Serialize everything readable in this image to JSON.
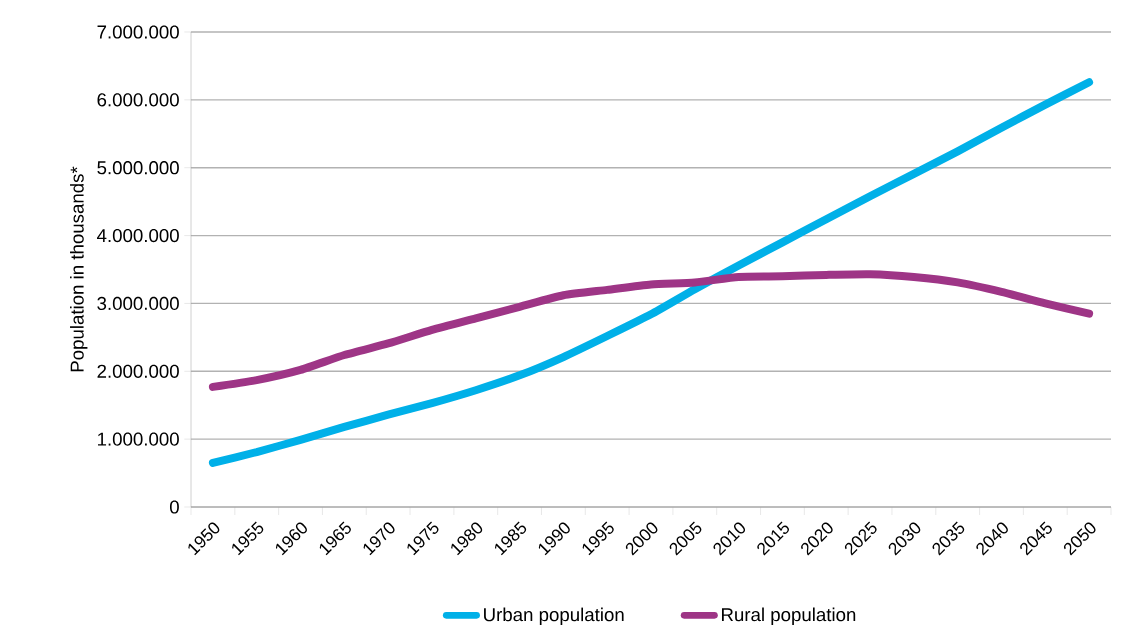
{
  "chart_data": {
    "type": "line",
    "ylabel": "Population in thousands*",
    "categories": [
      "1950",
      "1955",
      "1960",
      "1965",
      "1970",
      "1975",
      "1980",
      "1985",
      "1990",
      "1995",
      "2000",
      "2005",
      "2010",
      "2015",
      "2020",
      "2025",
      "2030",
      "2035",
      "2040",
      "2045",
      "2050"
    ],
    "series": [
      {
        "name": "Urban population",
        "color": "#00b0e8",
        "values": [
          650000,
          810000,
          990000,
          1180000,
          1360000,
          1530000,
          1720000,
          1940000,
          2210000,
          2520000,
          2840000,
          3210000,
          3560000,
          3900000,
          4240000,
          4580000,
          4910000,
          5240000,
          5590000,
          5930000,
          6260000
        ]
      },
      {
        "name": "Rural population",
        "color": "#9e3586",
        "values": [
          1770000,
          1870000,
          2020000,
          2240000,
          2410000,
          2610000,
          2780000,
          2950000,
          3120000,
          3200000,
          3280000,
          3310000,
          3390000,
          3400000,
          3420000,
          3430000,
          3390000,
          3310000,
          3170000,
          3000000,
          2850000
        ]
      }
    ],
    "ylim": [
      0,
      7000000
    ],
    "yticks": [
      0,
      {
        "value": 1000000,
        "label": "1.000.000"
      },
      {
        "value": 2000000,
        "label": "2.000.000"
      },
      {
        "value": 3000000,
        "label": "3.000.000"
      },
      {
        "value": 4000000,
        "label": "4.000.000"
      },
      {
        "value": 5000000,
        "label": "5.000.000"
      },
      {
        "value": 6000000,
        "label": "6.000.000"
      },
      {
        "value": 7000000,
        "label": "7.000.000"
      }
    ],
    "grid": "y",
    "legend": "bottom"
  }
}
